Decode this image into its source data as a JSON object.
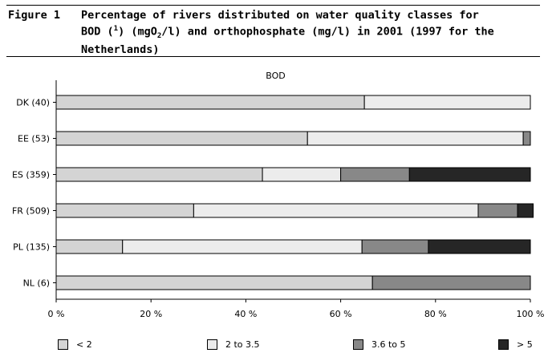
{
  "figure": {
    "label": "Figure 1",
    "title_parts": {
      "line1": "Percentage of rivers distributed on water quality classes for",
      "line2_a": "BOD (",
      "note_ref": "1",
      "line2_b": ") (mgO",
      "sub": "2",
      "line2_c": "/l) and orthophosphate (mg/l) in 2001 (1997 for the",
      "line3": "Netherlands)"
    }
  },
  "colors": {
    "class1": "#d4d4d4",
    "class2": "#ececec",
    "class3": "#888888",
    "class4": "#262626"
  },
  "chart_data": {
    "type": "bar",
    "orientation": "horizontal",
    "stacked": true,
    "title": "BOD",
    "categories": [
      "DK (40)",
      "EE (53)",
      "ES (359)",
      "FR (509)",
      "PL (135)",
      "NL (6)"
    ],
    "series": [
      {
        "name": "< 2",
        "values": [
          65,
          53,
          43.5,
          29,
          14,
          66.7
        ]
      },
      {
        "name": "2 to 3.5",
        "values": [
          35,
          45.5,
          16.5,
          60,
          50.5,
          0
        ]
      },
      {
        "name": "3.6 to 5",
        "values": [
          0,
          1.5,
          14.5,
          8.3,
          14,
          33.3
        ]
      },
      {
        "name": "> 5",
        "values": [
          0,
          0,
          25.5,
          3.3,
          21.5,
          0
        ]
      }
    ],
    "xlim": [
      0,
      100
    ],
    "xticks": [
      "0 %",
      "20 %",
      "40 %",
      "60 %",
      "80 %",
      "100 %"
    ],
    "grid": false,
    "legend_position": "bottom"
  }
}
